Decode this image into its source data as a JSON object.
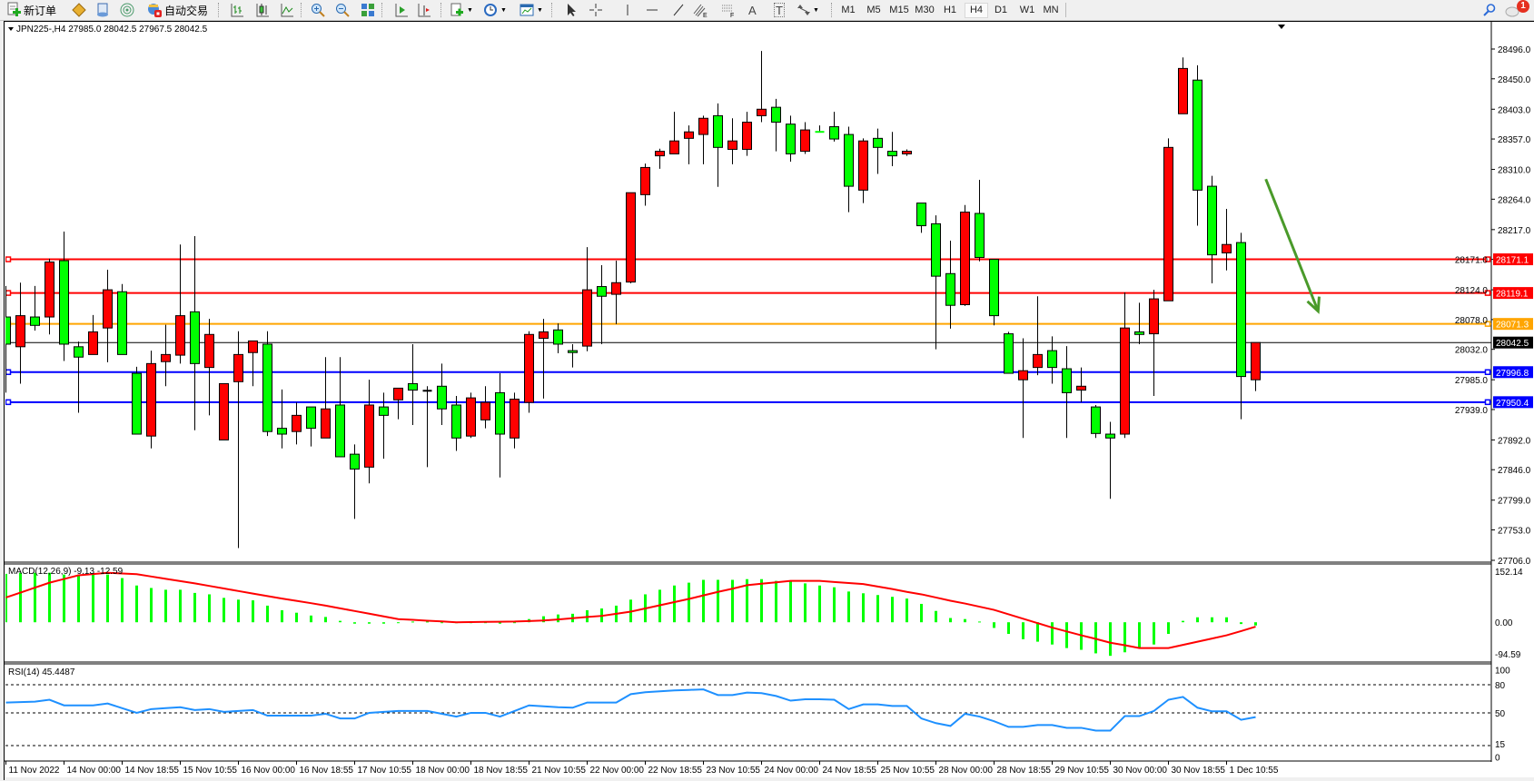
{
  "toolbar": {
    "new_order_label": "新订单",
    "autotrading_label": "自动交易",
    "fibo_channel_letter": "E",
    "fibo_letter": "F",
    "text_tool_label": "A",
    "text_label_tool_label": "T",
    "timeframes": [
      "M1",
      "M5",
      "M15",
      "M30",
      "H1",
      "H4",
      "D1",
      "W1",
      "MN"
    ],
    "active_timeframe": "H4",
    "notification_count": "1",
    "icons": [
      "new-order-icon",
      "market-watch-icon",
      "data-window-icon",
      "navigator-icon",
      "autotrading-icon",
      "bar-chart-icon",
      "candlestick-chart-icon",
      "line-chart-icon",
      "zoom-in-icon",
      "zoom-out-icon",
      "tile-windows-icon",
      "auto-scroll-icon",
      "chart-shift-icon",
      "indicators-icon",
      "periods-icon",
      "templates-icon",
      "cursor-icon",
      "crosshair-icon",
      "vertical-line-icon",
      "horizontal-line-icon",
      "trendline-icon",
      "fibonacci-channel-icon",
      "fibonacci-icon",
      "text-icon",
      "text-label-icon",
      "arrows-icon",
      "search-icon",
      "notification-icon"
    ]
  },
  "chart_window": {
    "header": "JPN225-,H4  27985.0 28042.5 27967.5 28042.5"
  },
  "chart_data": {
    "type": "candlestick",
    "symbol": "JPN225-",
    "timeframe": "H4",
    "colors": {
      "bull": "#ff0000",
      "bear": "#00ff00",
      "wick": "#000000",
      "bid_line": "#000000"
    },
    "candles_ohlc": [
      [
        28082,
        28130,
        27965,
        28040
      ],
      [
        28036,
        28135,
        27979,
        28084
      ],
      [
        28082,
        28130,
        28061,
        28069
      ],
      [
        28082,
        28172,
        28055,
        28167
      ],
      [
        28169,
        28214,
        28014,
        28040
      ],
      [
        28036,
        28044,
        27934,
        28020
      ],
      [
        28024,
        28085,
        28024,
        28059
      ],
      [
        28065,
        28155,
        28012,
        28124
      ],
      [
        28121,
        28133,
        28024,
        28024
      ],
      [
        27995,
        28005,
        27901,
        27901
      ],
      [
        27898,
        28030,
        27879,
        28010
      ],
      [
        28013,
        28070,
        27975,
        28024
      ],
      [
        28023,
        28194,
        28010,
        28084
      ],
      [
        28090,
        28207,
        27907,
        28010
      ],
      [
        28004,
        28079,
        27930,
        28055
      ],
      [
        27892,
        27979,
        27892,
        27979
      ],
      [
        27982,
        28060,
        27725,
        28024
      ],
      [
        28027,
        28045,
        27975,
        28045
      ],
      [
        28040,
        28060,
        27898,
        27905
      ],
      [
        27910,
        27970,
        27879,
        27901
      ],
      [
        27905,
        27950,
        27885,
        27930
      ],
      [
        27943,
        27943,
        27882,
        27910
      ],
      [
        27895,
        28020,
        27895,
        27940
      ],
      [
        27946,
        28020,
        27866,
        27866
      ],
      [
        27870,
        27885,
        27770,
        27847
      ],
      [
        27850,
        27985,
        27825,
        27946
      ],
      [
        27943,
        27965,
        27863,
        27930
      ],
      [
        27954,
        27972,
        27924,
        27972
      ],
      [
        27979,
        28040,
        27915,
        27969
      ],
      [
        27968,
        27975,
        27850,
        27968
      ],
      [
        27975,
        28010,
        27915,
        27940
      ],
      [
        27946,
        27960,
        27875,
        27895
      ],
      [
        27898,
        27965,
        27895,
        27957
      ],
      [
        27923,
        27975,
        27910,
        27950
      ],
      [
        27965,
        27995,
        27834,
        27901
      ],
      [
        27895,
        27965,
        27879,
        27955
      ],
      [
        27950,
        28060,
        27934,
        28055
      ],
      [
        28049,
        28079,
        27956,
        28059
      ],
      [
        28062,
        28072,
        28026,
        28040
      ],
      [
        28030,
        28040,
        28004,
        28027
      ],
      [
        28037,
        28190,
        28029,
        28124
      ],
      [
        28129,
        28162,
        28040,
        28114
      ],
      [
        28117,
        28169,
        28071,
        28135
      ],
      [
        28136,
        28274,
        28134,
        28274
      ],
      [
        28271,
        28319,
        28254,
        28313
      ],
      [
        28331,
        28342,
        28311,
        28338
      ],
      [
        28334,
        28399,
        28334,
        28354
      ],
      [
        28358,
        28378,
        28318,
        28368
      ],
      [
        28364,
        28393,
        28318,
        28389
      ],
      [
        28393,
        28412,
        28283,
        28344
      ],
      [
        28341,
        28389,
        28318,
        28354
      ],
      [
        28341,
        28399,
        28331,
        28383
      ],
      [
        28393,
        28493,
        28383,
        28403
      ],
      [
        28406,
        28419,
        28338,
        28383
      ],
      [
        28380,
        28393,
        28322,
        28334
      ],
      [
        28338,
        28383,
        28334,
        28371
      ],
      [
        28368,
        28378,
        28368,
        28368
      ],
      [
        28376,
        28399,
        28353,
        28357
      ],
      [
        28364,
        28376,
        28244,
        28284
      ],
      [
        28278,
        28358,
        28258,
        28354
      ],
      [
        28358,
        28373,
        28303,
        28344
      ],
      [
        28338,
        28368,
        28315,
        28331
      ],
      [
        28334,
        28341,
        28331,
        28338
      ],
      [
        28258,
        28258,
        28212,
        28223
      ],
      [
        28226,
        28239,
        28032,
        28145
      ],
      [
        28149,
        28200,
        28064,
        28100
      ],
      [
        28101,
        28255,
        28099,
        28244
      ],
      [
        28242,
        28294,
        28168,
        28174
      ],
      [
        28171,
        28171,
        28069,
        28084
      ],
      [
        28056,
        28059,
        27995,
        27995
      ],
      [
        27985,
        28049,
        27895,
        27999
      ],
      [
        28004,
        28114,
        27992,
        28024
      ],
      [
        28030,
        28052,
        27979,
        28004
      ],
      [
        28002,
        28037,
        27895,
        27965
      ],
      [
        27969,
        28004,
        27950,
        27975
      ],
      [
        27943,
        27946,
        27895,
        27902
      ],
      [
        27901,
        27920,
        27801,
        27895
      ],
      [
        27901,
        28120,
        27895,
        28065
      ],
      [
        28059,
        28104,
        28040,
        28055
      ],
      [
        28056,
        28124,
        27960,
        28110
      ],
      [
        28107,
        28358,
        28107,
        28344
      ],
      [
        28396,
        28483,
        28396,
        28466
      ],
      [
        28448,
        28471,
        28223,
        28278
      ],
      [
        28284,
        28300,
        28134,
        28178
      ],
      [
        28181,
        28249,
        28154,
        28194
      ],
      [
        28197,
        28212,
        27924,
        27990
      ],
      [
        27985,
        28042.5,
        27967.5,
        28042.5
      ]
    ],
    "price_axis": {
      "range": [
        27706.0,
        28496.0
      ],
      "ticks": [
        "28496.0",
        "28450.0",
        "28403.0",
        "28357.0",
        "28310.0",
        "28264.0",
        "28217.0",
        "28171.0",
        "28124.0",
        "28078.0",
        "28032.0",
        "27985.0",
        "27939.0",
        "27892.0",
        "27846.0",
        "27799.0",
        "27753.0",
        "27706.0"
      ]
    },
    "bid": {
      "value": 28042.5,
      "label": "28042.5"
    },
    "horizontal_lines": [
      {
        "value": 28171.1,
        "label": "28171.1",
        "color": "#ff0000"
      },
      {
        "value": 28119.1,
        "label": "28119.1",
        "color": "#ff0000"
      },
      {
        "value": 28071.3,
        "label": "28071.3",
        "color": "#ffa500"
      },
      {
        "value": 27996.8,
        "label": "27996.8",
        "color": "#0000ff"
      },
      {
        "value": 27950.4,
        "label": "27950.4",
        "color": "#0000ff"
      }
    ],
    "arrow_annotation": {
      "color": "#4a9a2a",
      "from": {
        "bar": 86.7,
        "price": 28295
      },
      "to": {
        "bar": 90.3,
        "price": 28091
      }
    },
    "time_labels": [
      "11 Nov 2022",
      "14 Nov 00:00",
      "14 Nov 18:55",
      "15 Nov 10:55",
      "16 Nov 00:00",
      "16 Nov 18:55",
      "17 Nov 10:55",
      "18 Nov 00:00",
      "18 Nov 18:55",
      "21 Nov 10:55",
      "22 Nov 00:00",
      "22 Nov 18:55",
      "23 Nov 10:55",
      "24 Nov 00:00",
      "24 Nov 18:55",
      "25 Nov 10:55",
      "28 Nov 00:00",
      "28 Nov 18:55",
      "29 Nov 10:55",
      "30 Nov 00:00",
      "30 Nov 18:55",
      "1 Dec 10:55"
    ],
    "macd": {
      "label": "MACD(12,26,9) -9.13 -12.59",
      "range": [
        -94.59,
        152.14
      ],
      "axis_labels": [
        "152.14",
        "0.00",
        "-94.59"
      ],
      "histogram_color": "#00ff00",
      "signal_color": "#ff0000",
      "main": [
        137,
        140,
        140,
        140,
        135,
        135,
        135,
        135,
        125,
        104,
        97,
        92,
        92,
        83,
        79,
        69,
        64,
        62,
        47,
        34,
        27,
        19,
        15,
        4,
        -4,
        -4,
        -4,
        -2,
        2,
        2,
        0,
        0,
        0,
        0,
        -4,
        0,
        9,
        17,
        22,
        24,
        34,
        39,
        47,
        64,
        79,
        92,
        104,
        112,
        120,
        120,
        120,
        122,
        122,
        117,
        115,
        110,
        104,
        99,
        87,
        82,
        77,
        72,
        67,
        52,
        32,
        12,
        9,
        2,
        -16,
        -33,
        -48,
        -55,
        -63,
        -73,
        -78,
        -88,
        -95,
        -85,
        -73,
        -63,
        -33,
        4,
        14,
        14,
        14,
        -5,
        -9.13
      ],
      "signal": [
        70,
        84,
        98,
        112,
        122.5,
        133,
        136.5,
        140,
        138,
        136,
        129.5,
        123,
        116.5,
        110,
        102.8,
        95.6,
        88.4,
        81.2,
        74,
        67,
        60.5,
        54,
        47,
        39.4,
        31.8,
        24.2,
        16.6,
        9,
        6.8,
        4.5,
        2.3,
        0,
        0.5,
        1,
        1.5,
        2,
        3.5,
        5,
        8,
        11.5,
        15,
        18,
        24,
        30,
        39,
        48,
        57,
        66,
        76,
        86,
        95,
        105,
        109,
        113,
        117,
        117,
        117,
        114,
        111,
        108,
        101,
        94,
        86,
        79,
        70,
        61,
        53,
        44,
        35,
        22.5,
        10,
        -2.5,
        -15,
        -26,
        -37,
        -47,
        -58,
        -65,
        -73,
        -73,
        -73,
        -64,
        -55,
        -46,
        -37,
        -25,
        -12.59
      ]
    },
    "rsi": {
      "label": "RSI(14) 45.4487",
      "range": [
        0,
        100
      ],
      "levels": [
        80,
        50,
        15
      ],
      "axis_labels": [
        "100",
        "80",
        "50",
        "15",
        "0"
      ],
      "line_color": "#1e90ff",
      "values": [
        61,
        61.5,
        62,
        64,
        58,
        58,
        58,
        60,
        55,
        50,
        54,
        55,
        56,
        53,
        54,
        51,
        52,
        53,
        47,
        47,
        47,
        47,
        49,
        44,
        44,
        50,
        51,
        52,
        52,
        52,
        49,
        46,
        50,
        50,
        46,
        52,
        58,
        57,
        56,
        55.5,
        61,
        61,
        61,
        70,
        72,
        73,
        74,
        74.5,
        75,
        69,
        69,
        71.6,
        71,
        68,
        63,
        64.5,
        64.5,
        64,
        54,
        59,
        59,
        57.4,
        57.4,
        44,
        39,
        36,
        49,
        46,
        41,
        35,
        35,
        37,
        37,
        34,
        34,
        31,
        31,
        46.5,
        46.5,
        52,
        64,
        67,
        55.5,
        51.6,
        51.6,
        42.6,
        45.4487
      ]
    }
  }
}
